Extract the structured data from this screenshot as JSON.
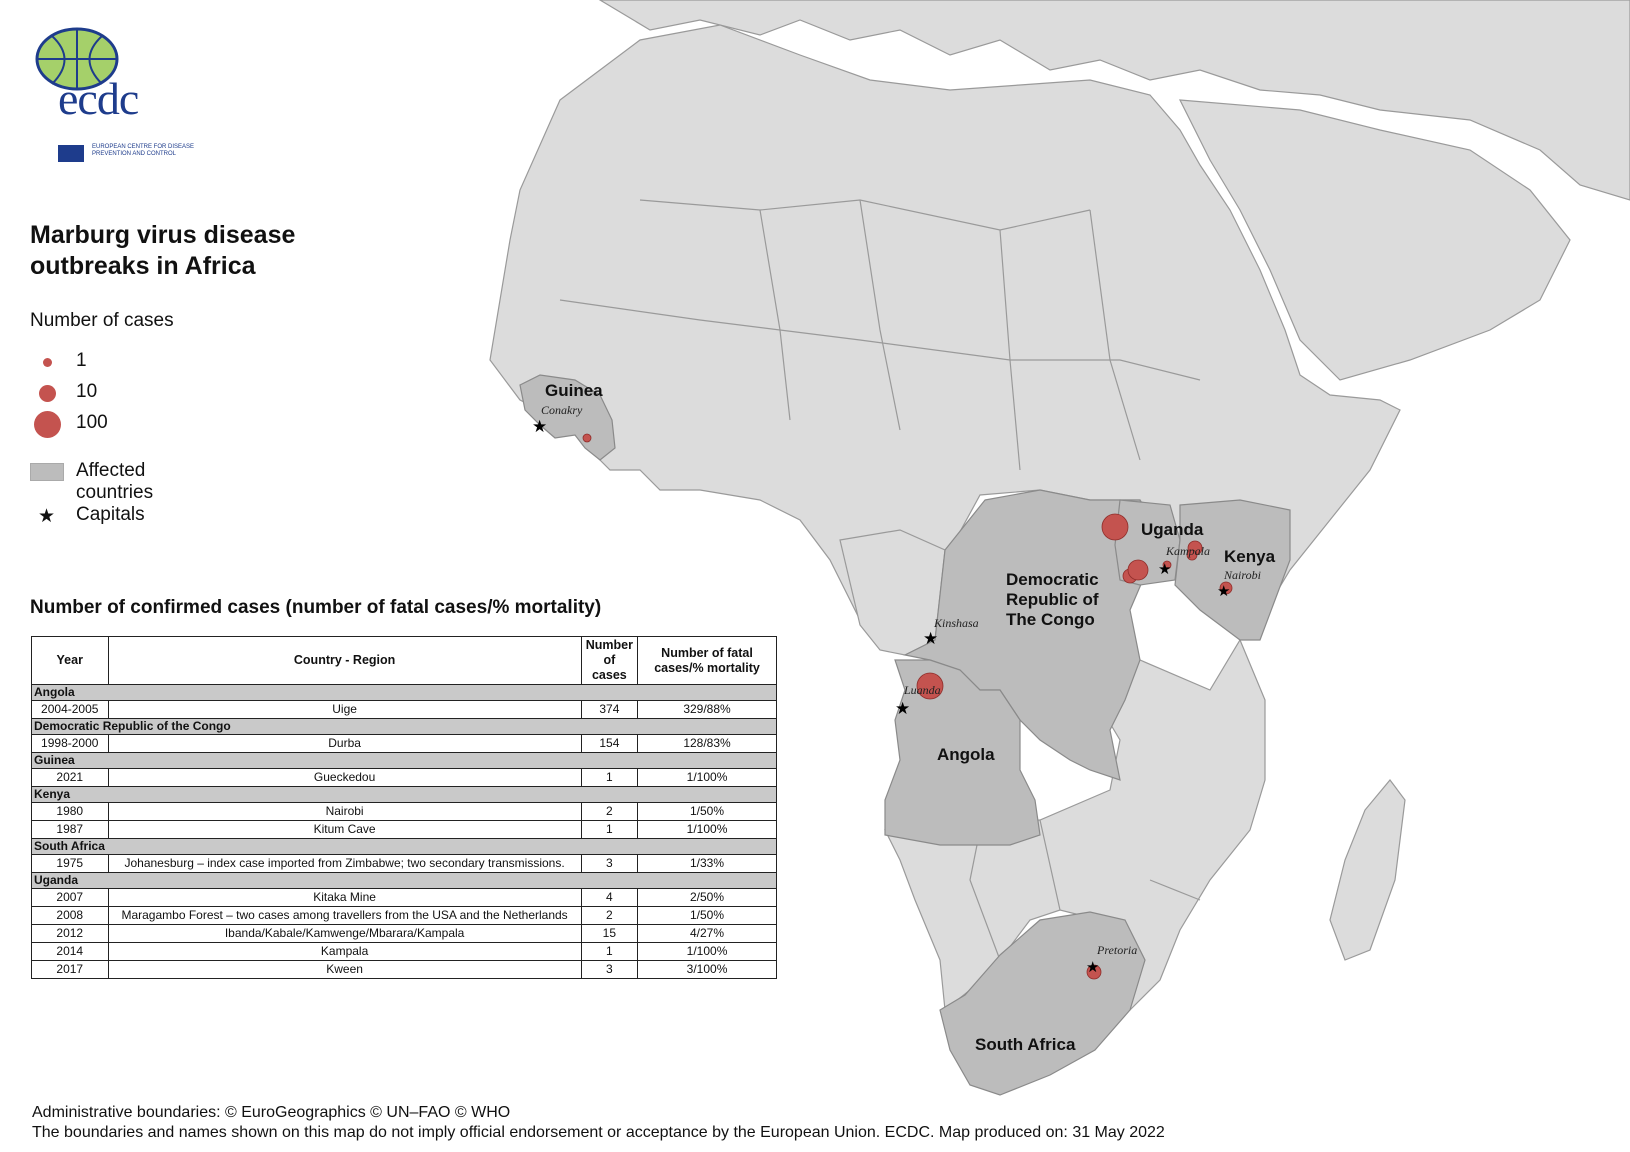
{
  "logo": {
    "text": "ecdc",
    "subtitle": "EUROPEAN CENTRE FOR DISEASE PREVENTION AND CONTROL",
    "icon": "globe-icon"
  },
  "title": "Marburg virus disease outbreaks in Africa",
  "legend": {
    "heading": "Number of cases",
    "sizes": [
      {
        "label": "1",
        "value": 1
      },
      {
        "label": "10",
        "value": 10
      },
      {
        "label": "100",
        "value": 100
      }
    ],
    "affected": "Affected countries",
    "capitals": "Capitals",
    "marker_color": "#c4534f",
    "affected_color": "#bcbcbc",
    "land_color": "#dcdcdc",
    "sea_color": "#ffffff"
  },
  "map": {
    "countries": [
      {
        "name": "Guinea",
        "affected": true
      },
      {
        "name": "Democratic Republic of The Congo",
        "label_lines": [
          "Democratic",
          "Republic of",
          "The Congo"
        ],
        "affected": true
      },
      {
        "name": "Uganda",
        "affected": true
      },
      {
        "name": "Kenya",
        "affected": true
      },
      {
        "name": "Angola",
        "affected": true
      },
      {
        "name": "South Africa",
        "affected": true
      }
    ],
    "capitals": [
      {
        "name": "Conakry"
      },
      {
        "name": "Kinshasa"
      },
      {
        "name": "Luanda"
      },
      {
        "name": "Kampala"
      },
      {
        "name": "Nairobi"
      },
      {
        "name": "Pretoria"
      }
    ],
    "outbreaks": [
      {
        "place": "Uige",
        "cases": 374
      },
      {
        "place": "Durba",
        "cases": 154
      },
      {
        "place": "Gueckedou",
        "cases": 1
      },
      {
        "place": "Nairobi",
        "cases": 2
      },
      {
        "place": "Kitum Cave",
        "cases": 1
      },
      {
        "place": "Johanesburg",
        "cases": 3
      },
      {
        "place": "Kitaka Mine",
        "cases": 4
      },
      {
        "place": "Ibanda/Kabale/Kamwenge/Mbarara/Kampala",
        "cases": 15
      },
      {
        "place": "Kampala",
        "cases": 1
      },
      {
        "place": "Kween",
        "cases": 3
      }
    ]
  },
  "table": {
    "title": "Number of confirmed cases (number of fatal cases/% mortality)",
    "headers": [
      "Year",
      "Country - Region",
      "Number of cases",
      "Number of fatal cases/% mortality"
    ],
    "groups": [
      {
        "country": "Angola",
        "rows": [
          [
            "2004-2005",
            "Uige",
            "374",
            "329/88%"
          ]
        ]
      },
      {
        "country": "Democratic Republic of the Congo",
        "rows": [
          [
            "1998-2000",
            "Durba",
            "154",
            "128/83%"
          ]
        ]
      },
      {
        "country": "Guinea",
        "rows": [
          [
            "2021",
            "Gueckedou",
            "1",
            "1/100%"
          ]
        ]
      },
      {
        "country": "Kenya",
        "rows": [
          [
            "1980",
            "Nairobi",
            "2",
            "1/50%"
          ],
          [
            "1987",
            "Kitum Cave",
            "1",
            "1/100%"
          ]
        ]
      },
      {
        "country": "South Africa",
        "rows": [
          [
            "1975",
            "Johanesburg – index case imported from Zimbabwe; two secondary transmissions.",
            "3",
            "1/33%"
          ]
        ]
      },
      {
        "country": "Uganda",
        "rows": [
          [
            "2007",
            "Kitaka Mine",
            "4",
            "2/50%"
          ],
          [
            "2008",
            "Maragambo Forest – two cases among travellers from the USA and the Netherlands",
            "2",
            "1/50%"
          ],
          [
            "2012",
            "Ibanda/Kabale/Kamwenge/Mbarara/Kampala",
            "15",
            "4/27%"
          ],
          [
            "2014",
            "Kampala",
            "1",
            "1/100%"
          ],
          [
            "2017",
            "Kween",
            "3",
            "3/100%"
          ]
        ]
      }
    ]
  },
  "footer": {
    "line1": "Administrative boundaries: © EuroGeographics © UN–FAO © WHO",
    "line2": "The boundaries and names shown on this map do not imply official endorsement or acceptance by the European Union. ECDC. Map produced on: 31 May 2022"
  }
}
